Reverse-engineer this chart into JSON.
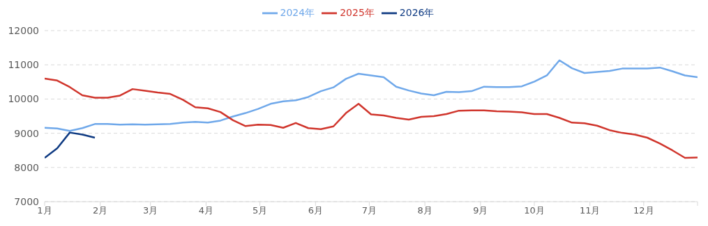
{
  "chart_data": {
    "type": "line",
    "x": [
      "--01-01",
      "--01-08",
      "--01-15",
      "--01-22",
      "--01-29",
      "--02-05",
      "--02-12",
      "--02-19",
      "--02-26",
      "--03-05",
      "--03-12",
      "--03-19",
      "--03-26",
      "--04-02",
      "--04-09",
      "--04-16",
      "--04-23",
      "--04-30",
      "--05-07",
      "--05-14",
      "--05-21",
      "--05-28",
      "--06-04",
      "--06-11",
      "--06-18",
      "--06-25",
      "--07-02",
      "--07-09",
      "--07-16",
      "--07-23",
      "--07-30",
      "--08-06",
      "--08-13",
      "--08-20",
      "--08-27",
      "--09-03",
      "--09-10",
      "--09-17",
      "--09-24",
      "--10-01",
      "--10-08",
      "--10-15",
      "--10-22",
      "--10-29",
      "--11-05",
      "--11-12",
      "--11-19",
      "--11-26",
      "--12-03",
      "--12-10",
      "--12-17",
      "--12-24",
      "--12-31"
    ],
    "series": [
      {
        "name": "2024年",
        "color": "#6fa8ea",
        "values": [
          9160,
          9140,
          9070,
          9150,
          9270,
          9270,
          9250,
          9260,
          9250,
          9260,
          9270,
          9310,
          9330,
          9310,
          9370,
          9490,
          9590,
          9710,
          9860,
          9930,
          9960,
          10060,
          10230,
          10340,
          10590,
          10740,
          10690,
          10640,
          10360,
          10250,
          10160,
          10110,
          10210,
          10200,
          10230,
          10360,
          10350,
          10350,
          10370,
          10510,
          10690,
          11130,
          10900,
          10760,
          10790,
          10820,
          10890,
          10890,
          10890,
          10920,
          10810,
          10690,
          10640
        ]
      },
      {
        "name": "2025年",
        "color": "#d0352c",
        "values": [
          10600,
          10540,
          10350,
          10110,
          10040,
          10040,
          10100,
          10290,
          10240,
          10190,
          10150,
          9980,
          9760,
          9730,
          9620,
          9380,
          9210,
          9250,
          9240,
          9160,
          9300,
          9150,
          9120,
          9200,
          9590,
          9860,
          9550,
          9520,
          9450,
          9400,
          9480,
          9500,
          9560,
          9660,
          9670,
          9670,
          9640,
          9630,
          9610,
          9560,
          9560,
          9450,
          9310,
          9290,
          9220,
          9090,
          9010,
          8960,
          8870,
          8700,
          8500,
          8280,
          8290
        ]
      },
      {
        "name": "2026年",
        "color": "#0e3a82",
        "x": [
          "--01-01",
          "--01-08",
          "--01-15",
          "--01-22",
          "--01-29"
        ],
        "values": [
          8280,
          8560,
          9020,
          8960,
          8870
        ]
      }
    ],
    "xlim": [
      "--01-01",
      "--12-31"
    ],
    "xticks": [
      {
        "value": "--01-01",
        "label": "1月"
      },
      {
        "value": "--02-01",
        "label": "2月"
      },
      {
        "value": "--03-01",
        "label": "3月"
      },
      {
        "value": "--04-01",
        "label": "4月"
      },
      {
        "value": "--05-01",
        "label": "5月"
      },
      {
        "value": "--06-01",
        "label": "6月"
      },
      {
        "value": "--07-01",
        "label": "7月"
      },
      {
        "value": "--08-01",
        "label": "8月"
      },
      {
        "value": "--09-01",
        "label": "9月"
      },
      {
        "value": "--10-01",
        "label": "10月"
      },
      {
        "value": "--11-01",
        "label": "11月"
      },
      {
        "value": "--12-01",
        "label": "12月"
      },
      {
        "value": "--12-31",
        "label": null
      }
    ],
    "ylim": [
      7000,
      12000
    ],
    "yticks": [
      7000,
      8000,
      9000,
      10000,
      11000,
      12000
    ],
    "grid": "y",
    "legend": "top",
    "marker": "none",
    "line_style": "solid"
  }
}
